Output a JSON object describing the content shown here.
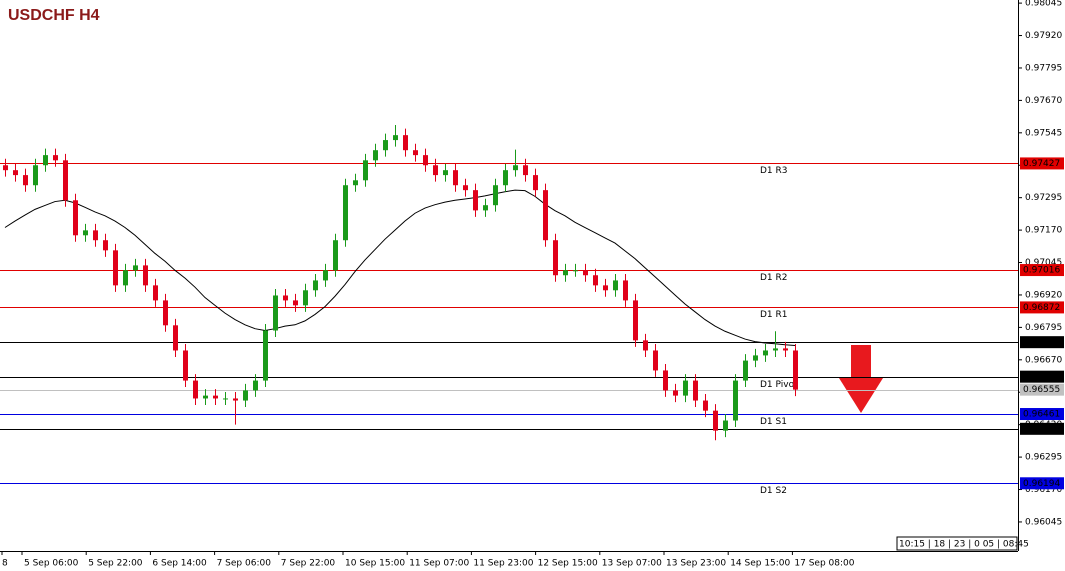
{
  "chart_data": {
    "type": "candlestick",
    "title": "USDCHF H4",
    "ylim": [
      0.95933,
      0.98057
    ],
    "yticks": [
      0.98045,
      {
        "value": 0.9792,
        "label": "0.97920"
      },
      0.97795,
      {
        "value": 0.9767,
        "label": "0.97670"
      },
      0.97545,
      {
        "value": 0.9742,
        "label": "0.97420"
      },
      0.97295,
      {
        "value": 0.9717,
        "label": "0.97170"
      },
      0.97045,
      {
        "value": 0.9692,
        "label": "0.96920"
      },
      0.96795,
      {
        "value": 0.9667,
        "label": "0.96670"
      },
      0.96545,
      {
        "value": 0.9642,
        "label": "0.96420"
      },
      0.96295,
      {
        "value": 0.9617,
        "label": "0.96170"
      },
      0.96045
    ],
    "x_labels": [
      "8",
      "5 Sep 06:00",
      "5 Sep 22:00",
      "6 Sep 14:00",
      "7 Sep 06:00",
      "7 Sep 22:00",
      "10 Sep 15:00",
      "11 Sep 07:00",
      "11 Sep 23:00",
      "12 Sep 15:00",
      "13 Sep 07:00",
      "13 Sep 23:00",
      "14 Sep 15:00",
      "17 Sep 08:00"
    ],
    "up_color": "#1a9a1a",
    "down_color": "#e0001a",
    "candles": [
      [
        0.9742,
        0.97445,
        0.97376,
        0.97401
      ],
      [
        0.97401,
        0.97426,
        0.97357,
        0.97382
      ],
      [
        0.97382,
        0.97407,
        0.97318,
        0.97343
      ],
      [
        0.97343,
        0.97445,
        0.97318,
        0.9742
      ],
      [
        0.9742,
        0.97484,
        0.97395,
        0.97459
      ],
      [
        0.97459,
        0.97484,
        0.97414,
        0.97439
      ],
      [
        0.97439,
        0.97464,
        0.9726,
        0.97285
      ],
      [
        0.97285,
        0.9731,
        0.97125,
        0.9715
      ],
      [
        0.9715,
        0.97194,
        0.97125,
        0.97169
      ],
      [
        0.97169,
        0.97194,
        0.97106,
        0.97131
      ],
      [
        0.97131,
        0.97156,
        0.97067,
        0.97092
      ],
      [
        0.97092,
        0.97117,
        0.96932,
        0.96957
      ],
      [
        0.96957,
        0.9704,
        0.96932,
        0.97015
      ],
      [
        0.97015,
        0.97059,
        0.9699,
        0.97034
      ],
      [
        0.97034,
        0.97059,
        0.96932,
        0.96957
      ],
      [
        0.96957,
        0.96982,
        0.96874,
        0.96899
      ],
      [
        0.96899,
        0.96924,
        0.96778,
        0.96803
      ],
      [
        0.96803,
        0.96828,
        0.96681,
        0.96706
      ],
      [
        0.96706,
        0.96731,
        0.96565,
        0.9659
      ],
      [
        0.9659,
        0.96615,
        0.96496,
        0.96521
      ],
      [
        0.96521,
        0.96557,
        0.96496,
        0.96532
      ],
      [
        0.96532,
        0.96557,
        0.96496,
        0.96521
      ],
      [
        0.96521,
        0.96546,
        0.96496,
        0.96521
      ],
      [
        0.96521,
        0.96546,
        0.9642,
        0.96513
      ],
      [
        0.96513,
        0.96577,
        0.96488,
        0.96552
      ],
      [
        0.96552,
        0.96615,
        0.96527,
        0.9659
      ],
      [
        0.9659,
        0.96808,
        0.96565,
        0.96783
      ],
      [
        0.96783,
        0.96943,
        0.96758,
        0.96918
      ],
      [
        0.96918,
        0.96943,
        0.96874,
        0.96899
      ],
      [
        0.96899,
        0.96924,
        0.96855,
        0.9688
      ],
      [
        0.9688,
        0.96963,
        0.96855,
        0.96938
      ],
      [
        0.96938,
        0.97001,
        0.96913,
        0.96976
      ],
      [
        0.96976,
        0.9704,
        0.96951,
        0.97015
      ],
      [
        0.97015,
        0.97156,
        0.9699,
        0.97131
      ],
      [
        0.97131,
        0.97368,
        0.97106,
        0.97343
      ],
      [
        0.97343,
        0.97387,
        0.97318,
        0.97362
      ],
      [
        0.97362,
        0.97464,
        0.97337,
        0.97439
      ],
      [
        0.97439,
        0.97503,
        0.97414,
        0.97478
      ],
      [
        0.97478,
        0.97542,
        0.97453,
        0.97517
      ],
      [
        0.97517,
        0.97575,
        0.97492,
        0.97536
      ],
      [
        0.97536,
        0.97561,
        0.97453,
        0.97478
      ],
      [
        0.97478,
        0.97503,
        0.97434,
        0.97459
      ],
      [
        0.97459,
        0.97484,
        0.97395,
        0.9742
      ],
      [
        0.9742,
        0.97445,
        0.97357,
        0.97382
      ],
      [
        0.97382,
        0.97426,
        0.97357,
        0.97401
      ],
      [
        0.97401,
        0.97426,
        0.97318,
        0.97343
      ],
      [
        0.97343,
        0.97368,
        0.97299,
        0.97324
      ],
      [
        0.97324,
        0.97349,
        0.97221,
        0.97246
      ],
      [
        0.97246,
        0.97291,
        0.97221,
        0.97266
      ],
      [
        0.97266,
        0.97368,
        0.97241,
        0.97343
      ],
      [
        0.97343,
        0.97426,
        0.97318,
        0.97401
      ],
      [
        0.97401,
        0.9748,
        0.97376,
        0.9742
      ],
      [
        0.9742,
        0.97445,
        0.97357,
        0.97382
      ],
      [
        0.97382,
        0.97407,
        0.97299,
        0.97324
      ],
      [
        0.97324,
        0.97349,
        0.97106,
        0.97131
      ],
      [
        0.97131,
        0.97156,
        0.96971,
        0.96996
      ],
      [
        0.96996,
        0.9704,
        0.96971,
        0.97015
      ],
      [
        0.97015,
        0.9704,
        0.9699,
        0.97015
      ],
      [
        0.97015,
        0.9704,
        0.96971,
        0.96996
      ],
      [
        0.96996,
        0.97021,
        0.96932,
        0.96957
      ],
      [
        0.96957,
        0.96982,
        0.96913,
        0.96938
      ],
      [
        0.96938,
        0.97001,
        0.96913,
        0.96976
      ],
      [
        0.96976,
        0.97001,
        0.96874,
        0.96899
      ],
      [
        0.96899,
        0.96924,
        0.9672,
        0.96745
      ],
      [
        0.96745,
        0.9677,
        0.96681,
        0.96706
      ],
      [
        0.96706,
        0.96731,
        0.96604,
        0.96629
      ],
      [
        0.96629,
        0.96654,
        0.96527,
        0.96552
      ],
      [
        0.96552,
        0.96577,
        0.96507,
        0.96532
      ],
      [
        0.96532,
        0.96615,
        0.96507,
        0.9659
      ],
      [
        0.9659,
        0.96615,
        0.96488,
        0.96513
      ],
      [
        0.96513,
        0.96538,
        0.96449,
        0.96474
      ],
      [
        0.96474,
        0.96499,
        0.9636,
        0.96397
      ],
      [
        0.96397,
        0.96461,
        0.96372,
        0.96436
      ],
      [
        0.96436,
        0.96615,
        0.96411,
        0.9659
      ],
      [
        0.9659,
        0.96692,
        0.96565,
        0.96667
      ],
      [
        0.96667,
        0.96712,
        0.96642,
        0.96687
      ],
      [
        0.96687,
        0.96731,
        0.96662,
        0.96706
      ],
      [
        0.96706,
        0.9678,
        0.96681,
        0.96714
      ],
      [
        0.96714,
        0.96739,
        0.96681,
        0.96706
      ],
      [
        0.96706,
        0.96731,
        0.9653,
        0.96555
      ]
    ],
    "ma": {
      "color": "#000000",
      "values": [
        0.9718,
        0.97205,
        0.97228,
        0.9725,
        0.97265,
        0.9728,
        0.97285,
        0.97275,
        0.97258,
        0.9724,
        0.97225,
        0.97205,
        0.9718,
        0.9715,
        0.97115,
        0.9708,
        0.9705,
        0.97015,
        0.96985,
        0.9695,
        0.9691,
        0.9688,
        0.9685,
        0.96825,
        0.96805,
        0.9679,
        0.96783,
        0.9679,
        0.968,
        0.96805,
        0.9682,
        0.96845,
        0.96875,
        0.96915,
        0.9696,
        0.9701,
        0.97055,
        0.97095,
        0.97135,
        0.9717,
        0.97205,
        0.97235,
        0.97255,
        0.97268,
        0.97278,
        0.97285,
        0.9729,
        0.97295,
        0.97302,
        0.9731,
        0.97318,
        0.97324,
        0.97322,
        0.973,
        0.9727,
        0.97245,
        0.97225,
        0.972,
        0.9718,
        0.9716,
        0.9714,
        0.9712,
        0.9709,
        0.9706,
        0.97025,
        0.9699,
        0.96955,
        0.9692,
        0.96885,
        0.96855,
        0.96825,
        0.968,
        0.9678,
        0.96765,
        0.9675,
        0.9674,
        0.96735,
        0.96732,
        0.96728,
        0.96725
      ]
    },
    "levels": [
      {
        "name": "D1 R3",
        "value": 0.97427,
        "color": "#e00000"
      },
      {
        "name": "D1 R2",
        "value": 0.97016,
        "color": "#e00000"
      },
      {
        "name": "D1 R1",
        "value": 0.96872,
        "color": "#e00000"
      },
      {
        "value": 0.96738,
        "color": "#000000"
      },
      {
        "name": "D1 Pivot",
        "value": 0.96605,
        "color": "#000000"
      },
      {
        "value": 0.96555,
        "color": "#c0c0c0"
      },
      {
        "name": "D1 S1",
        "value": 0.96461,
        "color": "#0000e0"
      },
      {
        "value": 0.96404,
        "color": "#000000"
      },
      {
        "name": "D1 S2",
        "value": 0.96194,
        "color": "#0000e0"
      }
    ],
    "countdown": "10:15 | 18 | 23 | 0 05 | 08:45"
  }
}
